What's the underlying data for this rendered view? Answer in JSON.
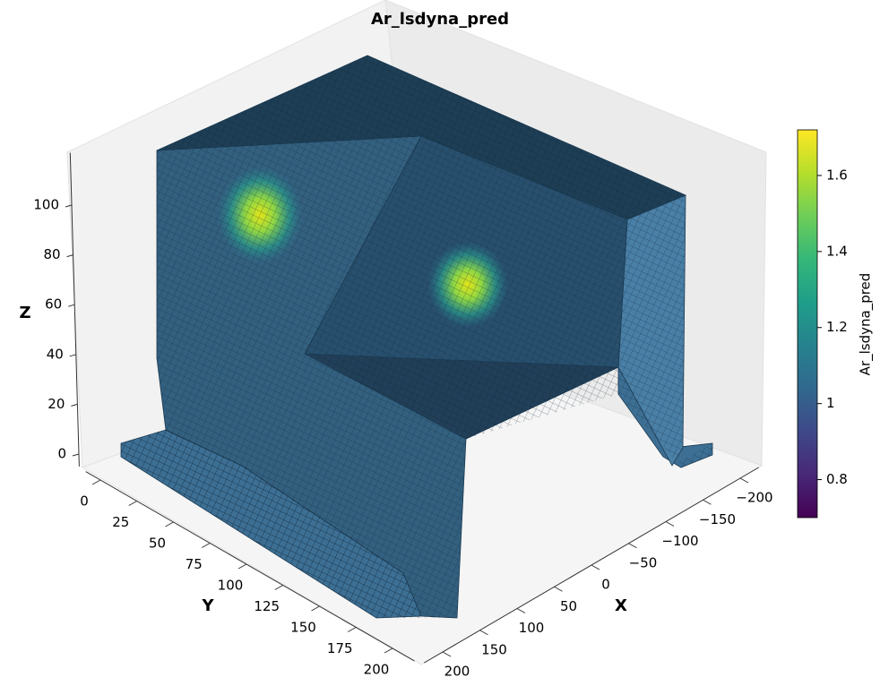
{
  "chart_data": {
    "type": "voxel3d",
    "title": "Ar_lsdyna_pred",
    "xlabel": "X",
    "ylabel": "Y",
    "zlabel": "Z",
    "xlim": [
      -225,
      225
    ],
    "xticks": [
      {
        "value": -200,
        "label": "−200"
      },
      {
        "value": -150,
        "label": "−150"
      },
      {
        "value": -100,
        "label": "−100"
      },
      {
        "value": -50,
        "label": "−50"
      },
      0,
      50,
      100,
      150,
      200
    ],
    "ylim": [
      -10,
      215
    ],
    "yticks": [
      0,
      25,
      50,
      75,
      100,
      125,
      150,
      175,
      200
    ],
    "zlim": [
      -5,
      121
    ],
    "zticks": [
      0,
      20,
      40,
      60,
      80,
      100
    ],
    "colorbar": {
      "label": "Ar_lsdyna_pred",
      "colormap": "viridis",
      "lim": [
        0.7,
        1.72
      ],
      "ticks": [
        0.8,
        1.0,
        1.2,
        1.4,
        1.6
      ]
    }
  }
}
